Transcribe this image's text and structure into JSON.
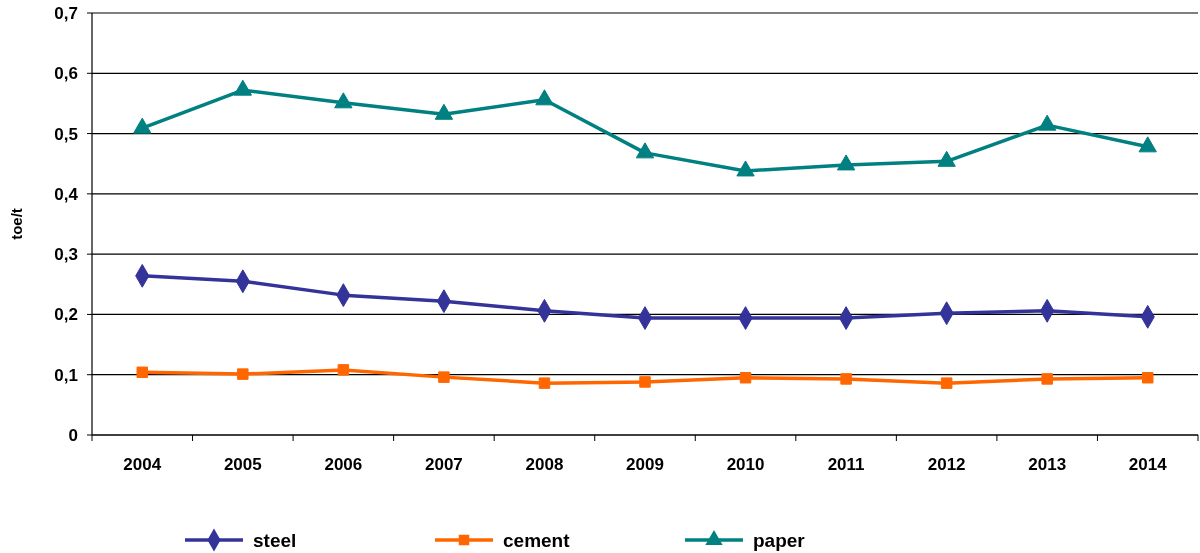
{
  "chart_data": {
    "type": "line",
    "ylabel": "toe/t",
    "categories": [
      "2004",
      "2005",
      "2006",
      "2007",
      "2008",
      "2009",
      "2010",
      "2011",
      "2012",
      "2013",
      "2014"
    ],
    "series": [
      {
        "name": "steel",
        "color": "#333399",
        "marker": "diamond",
        "values": [
          0.264,
          0.255,
          0.232,
          0.222,
          0.206,
          0.194,
          0.194,
          0.194,
          0.202,
          0.206,
          0.196
        ]
      },
      {
        "name": "cement",
        "color": "#ff6600",
        "marker": "square",
        "values": [
          0.104,
          0.101,
          0.108,
          0.096,
          0.086,
          0.088,
          0.095,
          0.093,
          0.086,
          0.093,
          0.095
        ]
      },
      {
        "name": "paper",
        "color": "#008080",
        "marker": "triangle",
        "values": [
          0.509,
          0.572,
          0.551,
          0.532,
          0.556,
          0.468,
          0.438,
          0.448,
          0.454,
          0.514,
          0.478
        ]
      }
    ],
    "ylim": [
      0,
      0.7
    ],
    "yticks": [
      0,
      {
        "value": 0.1,
        "label": "0,1"
      },
      {
        "value": 0.2,
        "label": "0,2"
      },
      {
        "value": 0.3,
        "label": "0,3"
      },
      {
        "value": 0.4,
        "label": "0,4"
      },
      {
        "value": 0.5,
        "label": "0,5"
      },
      {
        "value": 0.6,
        "label": "0,6"
      },
      {
        "value": 0.7,
        "label": "0,7"
      }
    ],
    "grid": "y",
    "legend": "bottom",
    "line_style": "solid"
  }
}
